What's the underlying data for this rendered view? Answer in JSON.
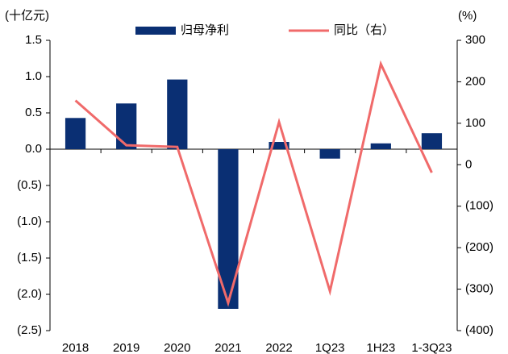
{
  "chart_data": {
    "type": "bar+line",
    "y_label": "(十亿元)",
    "y2_label": "(%)",
    "categories": [
      "2018",
      "2019",
      "2020",
      "2021",
      "2022",
      "1Q23",
      "1H23",
      "1-3Q23"
    ],
    "series": [
      {
        "name": "归母净利",
        "type": "bar",
        "color": "#0a2f73",
        "values": [
          0.43,
          0.63,
          0.96,
          -2.2,
          0.1,
          -0.13,
          0.08,
          0.22
        ]
      },
      {
        "name": "同比（右）",
        "type": "line",
        "axis": "y2",
        "color": "#f06a6a",
        "values": [
          155,
          47,
          43,
          -333,
          103,
          -305,
          243,
          -19
        ]
      }
    ],
    "ylim": [
      -2.5,
      1.5
    ],
    "yticks": [
      1.5,
      {
        "value": 1,
        "label": "1.0"
      },
      0.5,
      {
        "value": 0,
        "label": "0.0"
      },
      {
        "value": -0.5,
        "label": "(0.5)"
      },
      {
        "value": -1,
        "label": "(1.0)"
      },
      {
        "value": -1.5,
        "label": "(1.5)"
      },
      {
        "value": -2,
        "label": "(2.0)"
      },
      {
        "value": -2.5,
        "label": "(2.5)"
      }
    ],
    "y2lim": [
      -400,
      300
    ],
    "y2ticks": [
      300,
      200,
      100,
      0,
      {
        "value": -100,
        "label": "(100)"
      },
      {
        "value": -200,
        "label": "(200)"
      },
      {
        "value": -300,
        "label": "(300)"
      },
      {
        "value": -400,
        "label": "(400)"
      }
    ]
  }
}
